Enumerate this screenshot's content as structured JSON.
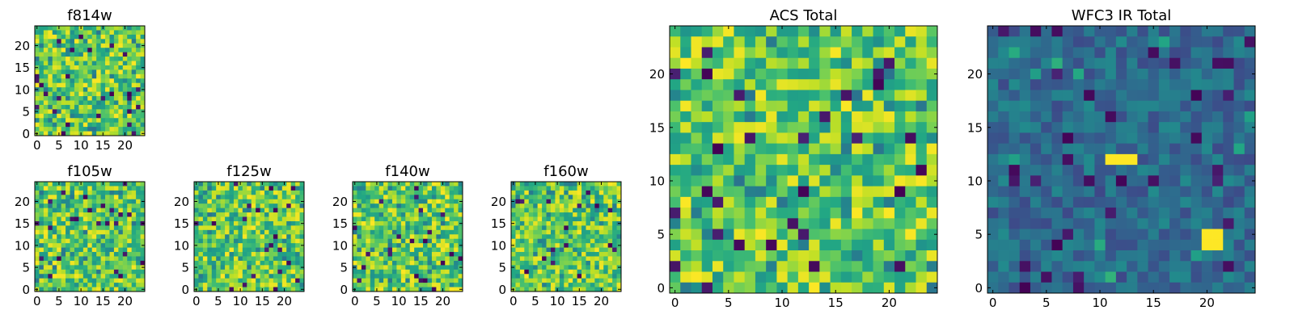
{
  "figure": {
    "description_role": "Grid of image-cutout panels (viridis colormap), 25x25 pixels each"
  },
  "chart_data": [
    {
      "type": "heatmap",
      "title": "f814w",
      "xlim": [
        0,
        24
      ],
      "ylim": [
        0,
        24
      ],
      "xticks": [
        "0",
        "5",
        "10",
        "15",
        "20"
      ],
      "yticks": [
        "0",
        "5",
        "10",
        "15",
        "20"
      ],
      "seed": 11,
      "style": "bright"
    },
    {
      "type": "heatmap",
      "title": "f105w",
      "xlim": [
        0,
        24
      ],
      "ylim": [
        0,
        24
      ],
      "xticks": [
        "0",
        "5",
        "10",
        "15",
        "20"
      ],
      "yticks": [
        "0",
        "5",
        "10",
        "15",
        "20"
      ],
      "seed": 23,
      "style": "bright"
    },
    {
      "type": "heatmap",
      "title": "f125w",
      "xlim": [
        0,
        24
      ],
      "ylim": [
        0,
        24
      ],
      "xticks": [
        "0",
        "5",
        "10",
        "15",
        "20"
      ],
      "yticks": [
        "0",
        "5",
        "10",
        "15",
        "20"
      ],
      "seed": 37,
      "style": "bright"
    },
    {
      "type": "heatmap",
      "title": "f140w",
      "xlim": [
        0,
        24
      ],
      "ylim": [
        0,
        24
      ],
      "xticks": [
        "0",
        "5",
        "10",
        "15",
        "20"
      ],
      "yticks": [
        "0",
        "5",
        "10",
        "15",
        "20"
      ],
      "seed": 41,
      "style": "bright"
    },
    {
      "type": "heatmap",
      "title": "f160w",
      "xlim": [
        0,
        24
      ],
      "ylim": [
        0,
        24
      ],
      "xticks": [
        "0",
        "5",
        "10",
        "15",
        "20"
      ],
      "yticks": [
        "0",
        "5",
        "10",
        "15",
        "20"
      ],
      "seed": 53,
      "style": "bright"
    },
    {
      "type": "heatmap",
      "title": "ACS Total",
      "xlim": [
        0,
        24
      ],
      "ylim": [
        0,
        24
      ],
      "xticks": [
        "0",
        "5",
        "10",
        "15",
        "20"
      ],
      "yticks": [
        "0",
        "5",
        "10",
        "15",
        "20"
      ],
      "seed": 67,
      "style": "bright"
    },
    {
      "type": "heatmap",
      "title": "WFC3 IR Total",
      "xlim": [
        0,
        24
      ],
      "ylim": [
        0,
        24
      ],
      "xticks": [
        "0",
        "5",
        "10",
        "15",
        "20"
      ],
      "yticks": [
        "0",
        "5",
        "10",
        "15",
        "20"
      ],
      "seed": 79,
      "style": "dark",
      "bright_sources": [
        {
          "x": [
            11,
            13
          ],
          "y": [
            12,
            12
          ]
        },
        {
          "x": [
            20,
            21
          ],
          "y": [
            4,
            5
          ]
        }
      ]
    }
  ]
}
